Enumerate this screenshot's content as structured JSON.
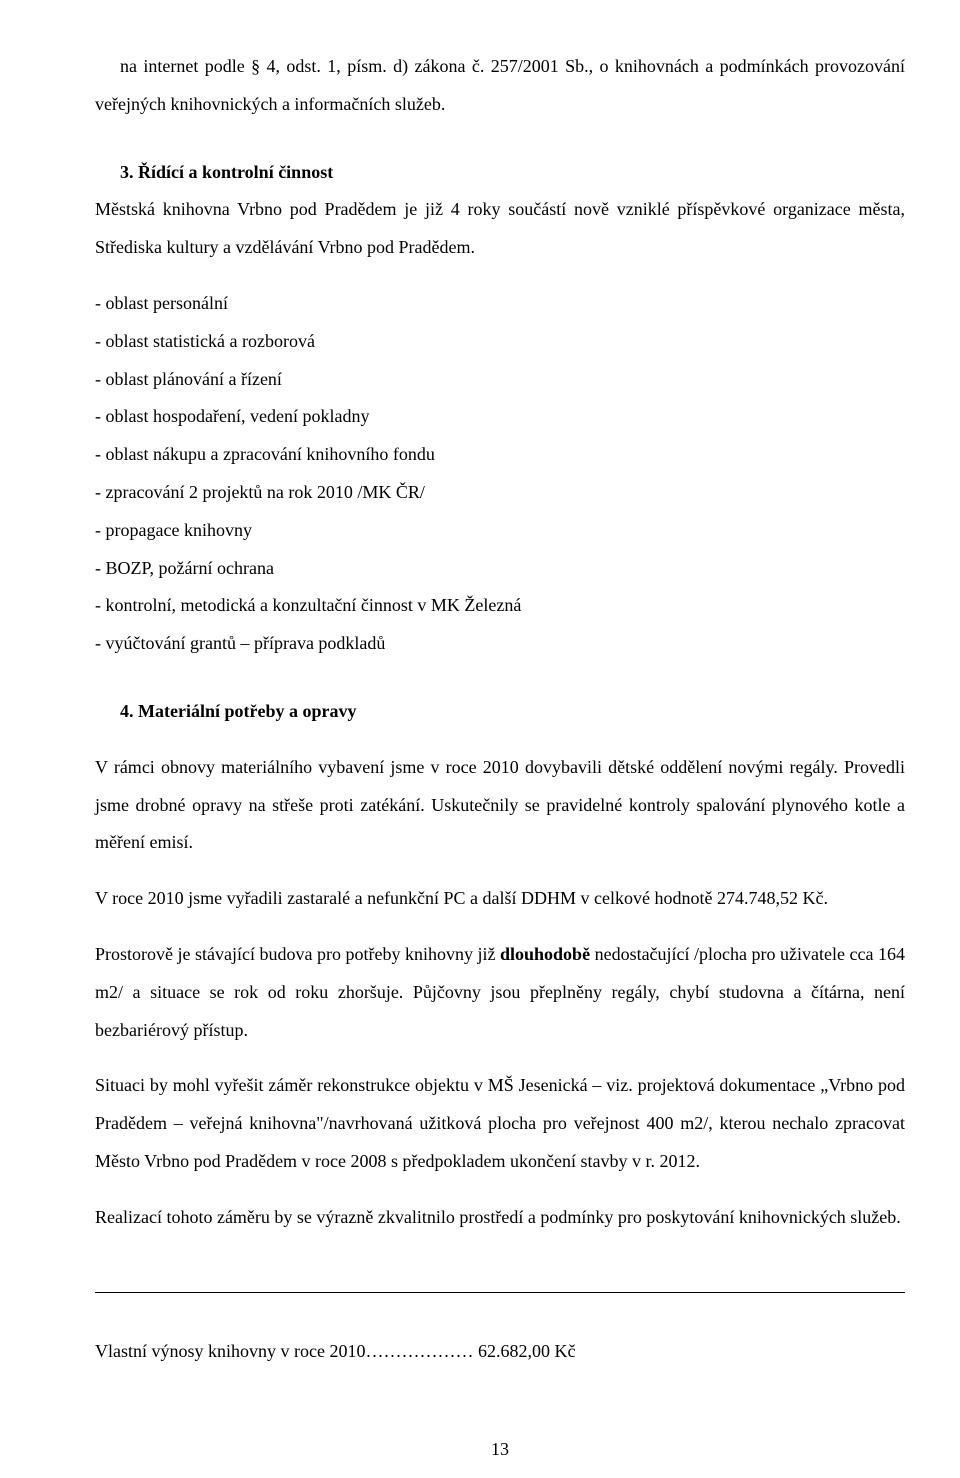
{
  "intro": "na internet podle § 4, odst. 1, písm. d) zákona č. 257/2001 Sb., o knihovnách a podmínkách provozování veřejných knihovnických a informačních  služeb.",
  "section3": {
    "heading": "3.  Řídící a kontrolní činnost",
    "sub": "Městská knihovna Vrbno pod Pradědem je již 4 roky součástí nově vzniklé příspěvkové organizace města, Střediska kultury a vzdělávání Vrbno pod Pradědem.",
    "items": [
      "- oblast personální",
      "- oblast statistická a rozborová",
      "- oblast plánování a řízení",
      "- oblast hospodaření, vedení pokladny",
      "- oblast nákupu a zpracování knihovního fondu",
      "- zpracování 2 projektů na rok 2010 /MK ČR/",
      "- propagace knihovny",
      "- BOZP, požární ochrana",
      "- kontrolní, metodická a konzultační činnost v MK Železná",
      "- vyúčtování grantů – příprava podkladů"
    ]
  },
  "section4": {
    "heading": "4.  Materiální potřeby a opravy",
    "p1": "V rámci obnovy materiálního vybavení jsme v roce 2010 dovybavili dětské oddělení novými regály. Provedli jsme drobné opravy na střeše proti zatékání. Uskutečnily se pravidelné kontroly spalování plynového kotle a měření emisí.",
    "p2": "V  roce 2010 jsme vyřadili zastaralé a nefunkční PC a další DDHM v celkové hodnotě 274.748,52 Kč.",
    "p3_pre": "Prostorově je stávající budova pro potřeby knihovny již ",
    "p3_bold": "dlouhodobě",
    "p3_post": " nedostačující /plocha pro uživatele cca 164 m2/ a situace se rok od roku zhoršuje. Půjčovny jsou přeplněny regály, chybí studovna a čítárna, není bezbariérový přístup.",
    "p4": "Situaci by mohl vyřešit záměr  rekonstrukce objektu v MŠ Jesenická – viz. projektová dokumentace „Vrbno pod Pradědem – veřejná knihovna\"/navrhovaná užitková plocha pro veřejnost 400 m2/, kterou nechalo zpracovat Město Vrbno pod Pradědem v roce 2008 s předpokladem ukončení stavby v r.  2012.",
    "p5": "Realizací tohoto záměru by se výrazně zkvalitnilo prostředí a podmínky pro poskytování knihovnických služeb."
  },
  "revenues": "Vlastní výnosy knihovny v roce 2010………………       62.682,00  Kč",
  "page_number": "13"
}
